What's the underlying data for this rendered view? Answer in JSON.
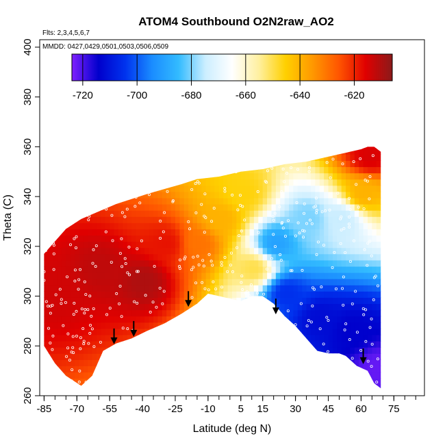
{
  "chart_data": {
    "type": "heatmap",
    "title": "ATOM4 Southbound O2N2raw_AO2",
    "flights_label": "Flts: 2,3,4,5,6,7",
    "dates_label": "MMDD: 0427,0429,0501,0503,0506,0509",
    "xlabel": "Latitude (deg N)",
    "ylabel": "Theta (C)",
    "xlim": [
      -87,
      89
    ],
    "ylim": [
      260,
      403
    ],
    "x_ticks": [
      -85,
      -70,
      -55,
      -40,
      -25,
      -10,
      5,
      15,
      30,
      45,
      60,
      75
    ],
    "x_tick_labels": [
      "-85",
      "-70",
      "-55",
      "-40",
      "-25",
      "-10",
      "5",
      "15",
      "30",
      "45",
      "60",
      "75"
    ],
    "y_ticks": [
      260,
      280,
      300,
      320,
      340,
      360,
      380,
      400
    ],
    "y_tick_labels": [
      "260",
      "280",
      "300",
      "320",
      "340",
      "360",
      "380",
      "400"
    ],
    "colorbar": {
      "range": [
        -724,
        -606
      ],
      "ticks": [
        -720,
        -700,
        -680,
        -660,
        -640,
        -620
      ],
      "tick_labels": [
        "-720",
        "-700",
        "-680",
        "-660",
        "-640",
        "-620"
      ],
      "colors": [
        "#7f20ff",
        "#0000cc",
        "#0033ee",
        "#1a8cff",
        "#33bbff",
        "#cceeff",
        "#ffffff",
        "#fff0a0",
        "#ffd000",
        "#ff9900",
        "#ff5500",
        "#e00000",
        "#8b1a1a"
      ]
    },
    "data_extent": {
      "upper_boundary": [
        [
          -85,
          317
        ],
        [
          -80,
          322
        ],
        [
          -75,
          327
        ],
        [
          -68,
          331
        ],
        [
          -60,
          334
        ],
        [
          -52,
          337
        ],
        [
          -45,
          339
        ],
        [
          -38,
          341
        ],
        [
          -30,
          343
        ],
        [
          -22,
          345
        ],
        [
          -15,
          347
        ],
        [
          -5,
          348
        ],
        [
          5,
          350
        ],
        [
          15,
          351
        ],
        [
          25,
          353
        ],
        [
          35,
          354
        ],
        [
          45,
          356
        ],
        [
          55,
          358
        ],
        [
          60,
          359
        ],
        [
          63,
          360
        ],
        [
          66,
          360
        ]
      ],
      "lower_boundary": [
        [
          -85,
          280
        ],
        [
          -80,
          273
        ],
        [
          -75,
          268
        ],
        [
          -68,
          264
        ],
        [
          -63,
          268
        ],
        [
          -58,
          278
        ],
        [
          -52,
          281
        ],
        [
          -45,
          283
        ],
        [
          -38,
          286
        ],
        [
          -30,
          289
        ],
        [
          -22,
          293
        ],
        [
          -15,
          297
        ],
        [
          -10,
          301
        ],
        [
          -5,
          300
        ],
        [
          0,
          299
        ],
        [
          5,
          298
        ],
        [
          10,
          300
        ],
        [
          15,
          300
        ],
        [
          20,
          297
        ],
        [
          25,
          292
        ],
        [
          30,
          288
        ],
        [
          35,
          283
        ],
        [
          40,
          278
        ],
        [
          45,
          277
        ],
        [
          50,
          277
        ],
        [
          53,
          276
        ],
        [
          58,
          272
        ],
        [
          63,
          270
        ],
        [
          66,
          265
        ]
      ],
      "right_edge_latitude": 69
    },
    "value_field_anchors": [
      {
        "lat": -80,
        "theta": 300,
        "value": -614
      },
      {
        "lat": -60,
        "theta": 310,
        "value": -612
      },
      {
        "lat": -40,
        "theta": 305,
        "value": -610
      },
      {
        "lat": -30,
        "theta": 320,
        "value": -618
      },
      {
        "lat": -15,
        "theta": 320,
        "value": -630
      },
      {
        "lat": -5,
        "theta": 330,
        "value": -640
      },
      {
        "lat": 5,
        "theta": 340,
        "value": -646
      },
      {
        "lat": 10,
        "theta": 310,
        "value": -650
      },
      {
        "lat": 20,
        "theta": 320,
        "value": -690
      },
      {
        "lat": 25,
        "theta": 300,
        "value": -705
      },
      {
        "lat": 40,
        "theta": 290,
        "value": -712
      },
      {
        "lat": 55,
        "theta": 285,
        "value": -714
      },
      {
        "lat": 35,
        "theta": 330,
        "value": -680
      },
      {
        "lat": 50,
        "theta": 330,
        "value": -675
      },
      {
        "lat": 60,
        "theta": 340,
        "value": -640
      },
      {
        "lat": 63,
        "theta": 355,
        "value": -615
      },
      {
        "lat": 67,
        "theta": 270,
        "value": -722
      }
    ],
    "arrows": [
      {
        "lat": -53,
        "theta": 287
      },
      {
        "lat": -44,
        "theta": 290
      },
      {
        "lat": -19,
        "theta": 302
      },
      {
        "lat": 21,
        "theta": 299
      },
      {
        "lat": 61,
        "theta": 279
      }
    ]
  }
}
